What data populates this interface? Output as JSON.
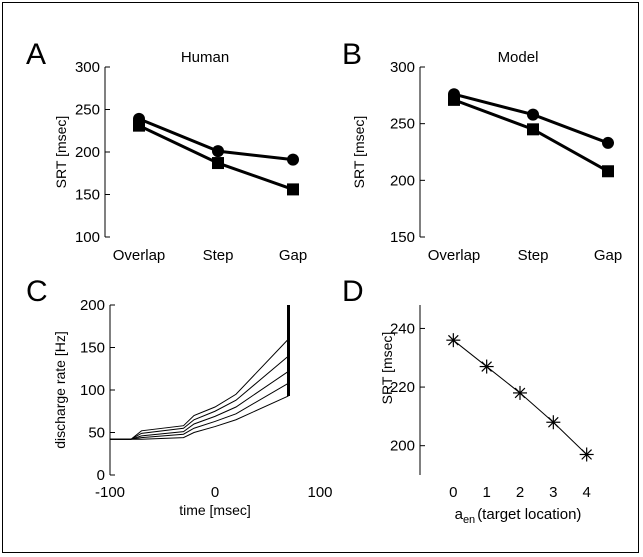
{
  "chart_data": [
    {
      "panel": "A",
      "type": "line",
      "title": "Human",
      "ylabel": "SRT [msec]",
      "xlabel": "",
      "categories": [
        "Overlap",
        "Step",
        "Gap"
      ],
      "ylim": [
        100,
        300
      ],
      "yticks": [
        100,
        150,
        200,
        250,
        300
      ],
      "series": [
        {
          "marker": "circle",
          "values": [
            239,
            201,
            191
          ]
        },
        {
          "marker": "square",
          "values": [
            231,
            187,
            156
          ]
        }
      ]
    },
    {
      "panel": "B",
      "type": "line",
      "title": "Model",
      "ylabel": "SRT [msec]",
      "xlabel": "",
      "categories": [
        "Overlap",
        "Step",
        "Gap"
      ],
      "ylim": [
        150,
        300
      ],
      "yticks": [
        150,
        200,
        250,
        300
      ],
      "series": [
        {
          "marker": "circle",
          "values": [
            276,
            258,
            233
          ]
        },
        {
          "marker": "square",
          "values": [
            271,
            245,
            208
          ]
        }
      ]
    },
    {
      "panel": "C",
      "type": "line",
      "title": "",
      "ylabel": "discharge rate [Hz]",
      "xlabel": "time [msec]",
      "xlim": [
        -100,
        100
      ],
      "xticks": [
        -100,
        0,
        100
      ],
      "ylim": [
        0,
        200
      ],
      "yticks": [
        0,
        50,
        100,
        150,
        200
      ],
      "x": [
        -100,
        -80,
        -70,
        -30,
        -20,
        0,
        20,
        70
      ],
      "series": [
        {
          "values": [
            42,
            42,
            52,
            58,
            70,
            80,
            95,
            160
          ]
        },
        {
          "values": [
            42,
            42,
            49,
            55,
            65,
            75,
            88,
            140
          ]
        },
        {
          "values": [
            42,
            42,
            46,
            51,
            60,
            69,
            80,
            122
          ]
        },
        {
          "values": [
            42,
            42,
            44,
            48,
            55,
            63,
            72,
            108
          ]
        },
        {
          "values": [
            42,
            42,
            42,
            44,
            50,
            57,
            65,
            93
          ]
        }
      ],
      "threshold_line": {
        "x": 70,
        "y_from": 93,
        "y_to": 200
      }
    },
    {
      "panel": "D",
      "type": "line",
      "title": "",
      "ylabel": "SRT [msec]",
      "xlabel_main": "a",
      "xlabel_sub": "en",
      "xlabel_rest": "(target location)",
      "xlim": [
        -1,
        5
      ],
      "xticks": [
        0,
        1,
        2,
        3,
        4
      ],
      "ylim": [
        190,
        248
      ],
      "yticks": [
        200,
        220,
        240
      ],
      "x": [
        0,
        1,
        2,
        3,
        4
      ],
      "values": [
        236,
        227,
        218,
        208,
        197
      ],
      "marker": "asterisk"
    }
  ]
}
